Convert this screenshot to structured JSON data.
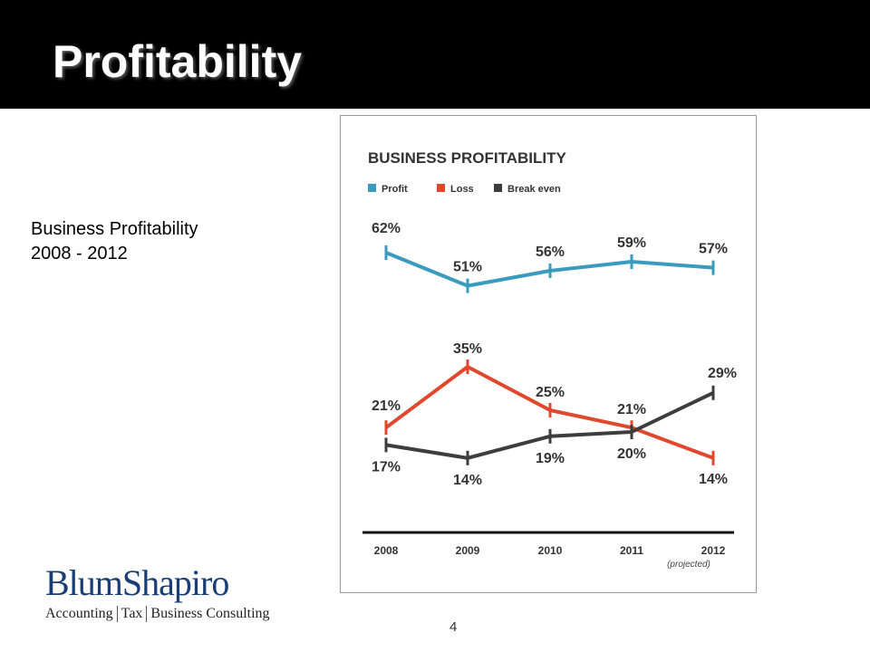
{
  "slide": {
    "title": "Profitability",
    "subtitle_line1": "Business Profitability",
    "subtitle_line2": "2008 - 2012",
    "page_number": "4"
  },
  "logo": {
    "name": "BlumShapiro",
    "tag1": "Accounting",
    "tag2": "Tax",
    "tag3": "Business Consulting"
  },
  "colors": {
    "profit": "#3a9bbf",
    "loss": "#e0472c",
    "break_even": "#3d3d3d",
    "title_bar": "#000000",
    "logo": "#1a3e73"
  },
  "chart_data": {
    "type": "line",
    "title": "BUSINESS PROFITABILITY",
    "categories": [
      "2008",
      "2009",
      "2010",
      "2011",
      "2012"
    ],
    "category_note": "(projected)",
    "legend_position": "top-left",
    "grid": false,
    "ylim": [
      10,
      65
    ],
    "series": [
      {
        "name": "Profit",
        "color": "#3a9bbf",
        "values": [
          62,
          51,
          56,
          59,
          57
        ],
        "labels": [
          "62%",
          "51%",
          "56%",
          "59%",
          "57%"
        ]
      },
      {
        "name": "Loss",
        "color": "#e0472c",
        "values": [
          21,
          35,
          25,
          21,
          14
        ],
        "labels": [
          "21%",
          "35%",
          "25%",
          "21%",
          "14%"
        ]
      },
      {
        "name": "Break even",
        "color": "#3d3d3d",
        "values": [
          17,
          14,
          19,
          20,
          29
        ],
        "labels": [
          "17%",
          "14%",
          "19%",
          "20%",
          "29%"
        ]
      }
    ]
  }
}
